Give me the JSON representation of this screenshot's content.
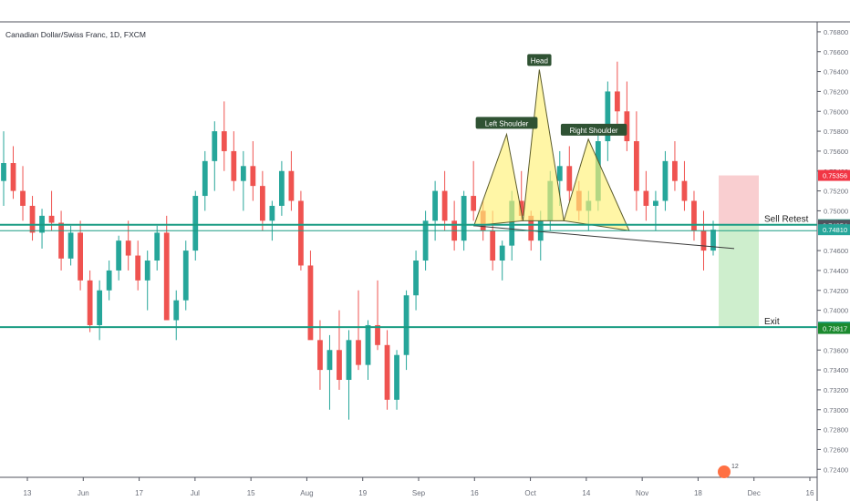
{
  "header": {
    "symbol_title": "Canadian Dollar/Swiss Franc, 1D, FXCM"
  },
  "colors": {
    "up": "#26a69a",
    "down": "#ef5350",
    "pattern_fill": "#fff176",
    "pattern_stroke": "#5b5b2a",
    "level": "#1a9c83",
    "stop_zone": "#f8c9cb",
    "target_zone": "#c9ecc8",
    "axis_text": "#6b6f7a"
  },
  "chart_data": {
    "type": "candlestick",
    "title": "",
    "ylim": [
      0.7232,
      0.769
    ],
    "y_ticks": [
      "0.76800",
      "0.76600",
      "0.76400",
      "0.76200",
      "0.76000",
      "0.75800",
      "0.75600",
      "0.75400",
      "0.75200",
      "0.75000",
      "0.74600",
      "0.74400",
      "0.74200",
      "0.74000",
      "0.73600",
      "0.73400",
      "0.73200",
      "0.73000",
      "0.72800",
      "0.72600",
      "0.72400"
    ],
    "x_ticks": [
      "13",
      "Jun",
      "17",
      "Jul",
      "15",
      "Aug",
      "19",
      "Sep",
      "16",
      "Oct",
      "14",
      "Nov",
      "18",
      "Dec",
      "16"
    ],
    "ohlc_sample": [
      [
        0.753,
        0.758,
        0.7505,
        0.7548
      ],
      [
        0.7548,
        0.7565,
        0.7512,
        0.752
      ],
      [
        0.752,
        0.7545,
        0.749,
        0.7505
      ],
      [
        0.7505,
        0.7515,
        0.747,
        0.7478
      ],
      [
        0.7478,
        0.7502,
        0.7462,
        0.7495
      ],
      [
        0.7495,
        0.752,
        0.748,
        0.7488
      ],
      [
        0.7488,
        0.75,
        0.744,
        0.7452
      ],
      [
        0.7452,
        0.7485,
        0.7445,
        0.7478
      ],
      [
        0.7478,
        0.749,
        0.742,
        0.743
      ],
      [
        0.743,
        0.744,
        0.7378,
        0.7385
      ],
      [
        0.7385,
        0.743,
        0.737,
        0.742
      ],
      [
        0.742,
        0.745,
        0.741,
        0.744
      ],
      [
        0.744,
        0.7475,
        0.743,
        0.747
      ],
      [
        0.747,
        0.749,
        0.744,
        0.7455
      ],
      [
        0.7455,
        0.747,
        0.742,
        0.743
      ],
      [
        0.743,
        0.746,
        0.74,
        0.745
      ],
      [
        0.745,
        0.7485,
        0.744,
        0.7478
      ],
      [
        0.7478,
        0.7495,
        0.74,
        0.739
      ],
      [
        0.739,
        0.742,
        0.737,
        0.741
      ],
      [
        0.741,
        0.747,
        0.74,
        0.746
      ],
      [
        0.746,
        0.752,
        0.745,
        0.7515
      ],
      [
        0.7515,
        0.756,
        0.75,
        0.755
      ],
      [
        0.755,
        0.759,
        0.752,
        0.758
      ],
      [
        0.758,
        0.761,
        0.754,
        0.756
      ],
      [
        0.756,
        0.758,
        0.752,
        0.753
      ],
      [
        0.753,
        0.756,
        0.75,
        0.7545
      ],
      [
        0.7545,
        0.757,
        0.751,
        0.7525
      ],
      [
        0.7525,
        0.754,
        0.748,
        0.749
      ],
      [
        0.749,
        0.751,
        0.747,
        0.7505
      ],
      [
        0.7505,
        0.755,
        0.7495,
        0.754
      ],
      [
        0.754,
        0.756,
        0.75,
        0.751
      ],
      [
        0.751,
        0.752,
        0.744,
        0.7445
      ],
      [
        0.7445,
        0.746,
        0.738,
        0.737
      ],
      [
        0.737,
        0.739,
        0.732,
        0.734
      ],
      [
        0.734,
        0.7375,
        0.73,
        0.736
      ],
      [
        0.736,
        0.74,
        0.732,
        0.733
      ],
      [
        0.733,
        0.738,
        0.729,
        0.737
      ],
      [
        0.737,
        0.742,
        0.734,
        0.7345
      ],
      [
        0.7345,
        0.739,
        0.733,
        0.7385
      ],
      [
        0.7385,
        0.743,
        0.736,
        0.7365
      ],
      [
        0.7365,
        0.738,
        0.73,
        0.731
      ],
      [
        0.731,
        0.736,
        0.73,
        0.7355
      ],
      [
        0.7355,
        0.742,
        0.734,
        0.7415
      ],
      [
        0.7415,
        0.746,
        0.74,
        0.745
      ],
      [
        0.745,
        0.75,
        0.744,
        0.749
      ],
      [
        0.749,
        0.753,
        0.747,
        0.752
      ],
      [
        0.752,
        0.754,
        0.748,
        0.749
      ],
      [
        0.749,
        0.751,
        0.746,
        0.747
      ],
      [
        0.747,
        0.752,
        0.746,
        0.7515
      ],
      [
        0.7515,
        0.755,
        0.749,
        0.75
      ],
      [
        0.75,
        0.751,
        0.747,
        0.748
      ],
      [
        0.748,
        0.75,
        0.744,
        0.745
      ],
      [
        0.745,
        0.747,
        0.743,
        0.7465
      ],
      [
        0.7465,
        0.752,
        0.745,
        0.751
      ],
      [
        0.751,
        0.754,
        0.749,
        0.7495
      ],
      [
        0.7495,
        0.75,
        0.746,
        0.747
      ],
      [
        0.747,
        0.75,
        0.745,
        0.749
      ],
      [
        0.749,
        0.754,
        0.748,
        0.753
      ],
      [
        0.753,
        0.756,
        0.7505,
        0.7545
      ],
      [
        0.7545,
        0.7565,
        0.751,
        0.752
      ],
      [
        0.752,
        0.753,
        0.749,
        0.75
      ],
      [
        0.75,
        0.752,
        0.748,
        0.751
      ],
      [
        0.751,
        0.758,
        0.75,
        0.757
      ],
      [
        0.757,
        0.763,
        0.755,
        0.762
      ],
      [
        0.762,
        0.765,
        0.758,
        0.76
      ],
      [
        0.76,
        0.763,
        0.756,
        0.757
      ],
      [
        0.757,
        0.76,
        0.75,
        0.752
      ],
      [
        0.752,
        0.754,
        0.749,
        0.7505
      ],
      [
        0.7505,
        0.752,
        0.748,
        0.751
      ],
      [
        0.751,
        0.756,
        0.75,
        0.755
      ],
      [
        0.755,
        0.757,
        0.752,
        0.753
      ],
      [
        0.753,
        0.755,
        0.75,
        0.751
      ],
      [
        0.751,
        0.752,
        0.747,
        0.748
      ],
      [
        0.748,
        0.75,
        0.744,
        0.746
      ],
      [
        0.746,
        0.749,
        0.7455,
        0.7481
      ]
    ],
    "levels": [
      {
        "name": "Sell Retest",
        "value": 0.7486
      },
      {
        "name": "Exit",
        "value": 0.7383
      }
    ],
    "price_tags": [
      {
        "label": "0.75356",
        "value": 0.75356,
        "color": "#f23645"
      },
      {
        "label": "0.74860",
        "value": 0.7486,
        "color": "#1a9c83"
      },
      {
        "label": "0.74854",
        "value": 0.74854,
        "color": "#50535e"
      },
      {
        "label": "0.74810",
        "value": 0.7481,
        "color": "#26a69a"
      },
      {
        "label": "0.73830",
        "value": 0.7383,
        "color": "#1a9c83"
      },
      {
        "label": "0.73817",
        "value": 0.73817,
        "color": "#1b8a2f"
      }
    ],
    "pattern": {
      "type": "head-and-shoulders",
      "labels": {
        "left": "Left Shoulder",
        "head": "Head",
        "right": "Right Shoulder"
      },
      "points": [
        {
          "t": 0.58,
          "v": 0.7485
        },
        {
          "t": 0.62,
          "v": 0.7577
        },
        {
          "t": 0.64,
          "v": 0.749
        },
        {
          "t": 0.66,
          "v": 0.7642
        },
        {
          "t": 0.69,
          "v": 0.749
        },
        {
          "t": 0.72,
          "v": 0.7572
        },
        {
          "t": 0.77,
          "v": 0.748
        }
      ]
    },
    "position": {
      "entry": 0.7486,
      "stop": 0.75356,
      "target": 0.7383
    }
  },
  "footer": {
    "badge_text": "12"
  }
}
